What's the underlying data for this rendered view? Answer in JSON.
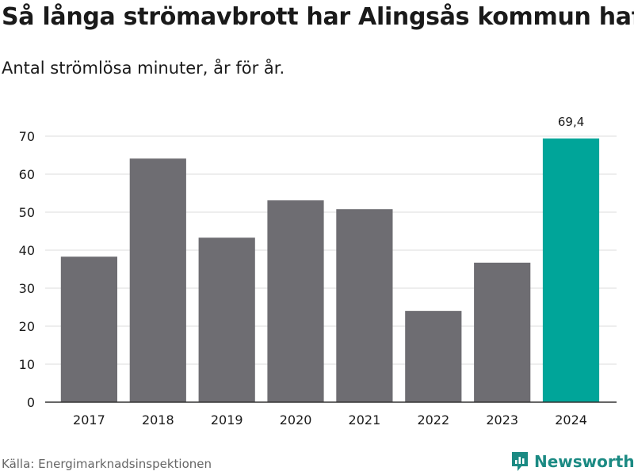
{
  "title": "Så långa strömavbrott har Alingsås kommun haft",
  "subtitle": "Antal strömlösa minuter, år för år.",
  "source": "Källa: Energimarknadsinspektionen",
  "brand": {
    "name": "Newsworthy",
    "icon": "newsworthy-logo-icon",
    "color": "#1b8a83"
  },
  "colors": {
    "bar": "#6e6d72",
    "highlight": "#00a599",
    "grid": "#dddddd",
    "axis": "#333333"
  },
  "chart_data": {
    "type": "bar",
    "title": "Så långa strömavbrott har Alingsås kommun haft",
    "subtitle": "Antal strömlösa minuter, år för år.",
    "xlabel": "",
    "ylabel": "",
    "categories": [
      "2017",
      "2018",
      "2019",
      "2020",
      "2021",
      "2022",
      "2023",
      "2024"
    ],
    "values": [
      38.3,
      64.1,
      43.3,
      53.1,
      50.8,
      24.0,
      36.7,
      69.4
    ],
    "highlight_index": 7,
    "data_labels": [
      {
        "index": 7,
        "text": "69,4"
      }
    ],
    "ylim": [
      0,
      70
    ],
    "yticks": [
      0,
      10,
      20,
      30,
      40,
      50,
      60,
      70
    ],
    "grid": true,
    "legend": "none"
  }
}
